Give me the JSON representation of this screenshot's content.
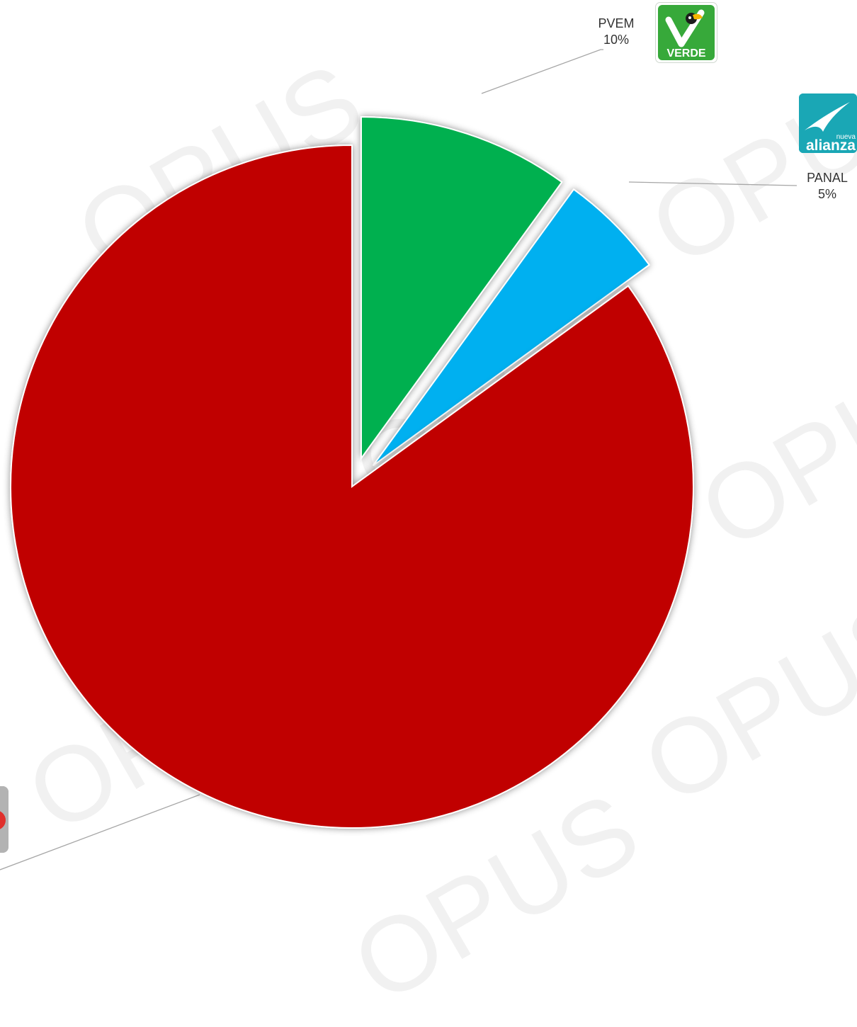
{
  "chart_data": {
    "type": "pie",
    "title": "",
    "slices": [
      {
        "name": "PVEM",
        "label": "PVEM",
        "percent_label": "10%",
        "value": 10,
        "color": "#00b050",
        "logo": "verde-logo"
      },
      {
        "name": "PANAL",
        "label": "PANAL",
        "percent_label": "5%",
        "value": 5,
        "color": "#00b0f0",
        "logo": "nueva-alianza-logo"
      },
      {
        "name": "",
        "label": "",
        "percent_label": "",
        "value": 85,
        "color": "#c00000",
        "logo": "party-logo"
      }
    ],
    "exploded": true,
    "legend": "none"
  },
  "logos": {
    "verde_text": "VERDE",
    "alianza_text": "alianza",
    "alianza_small": "nueva"
  },
  "watermark": {
    "text": "OPUS",
    "color": "#f1f1f1"
  }
}
